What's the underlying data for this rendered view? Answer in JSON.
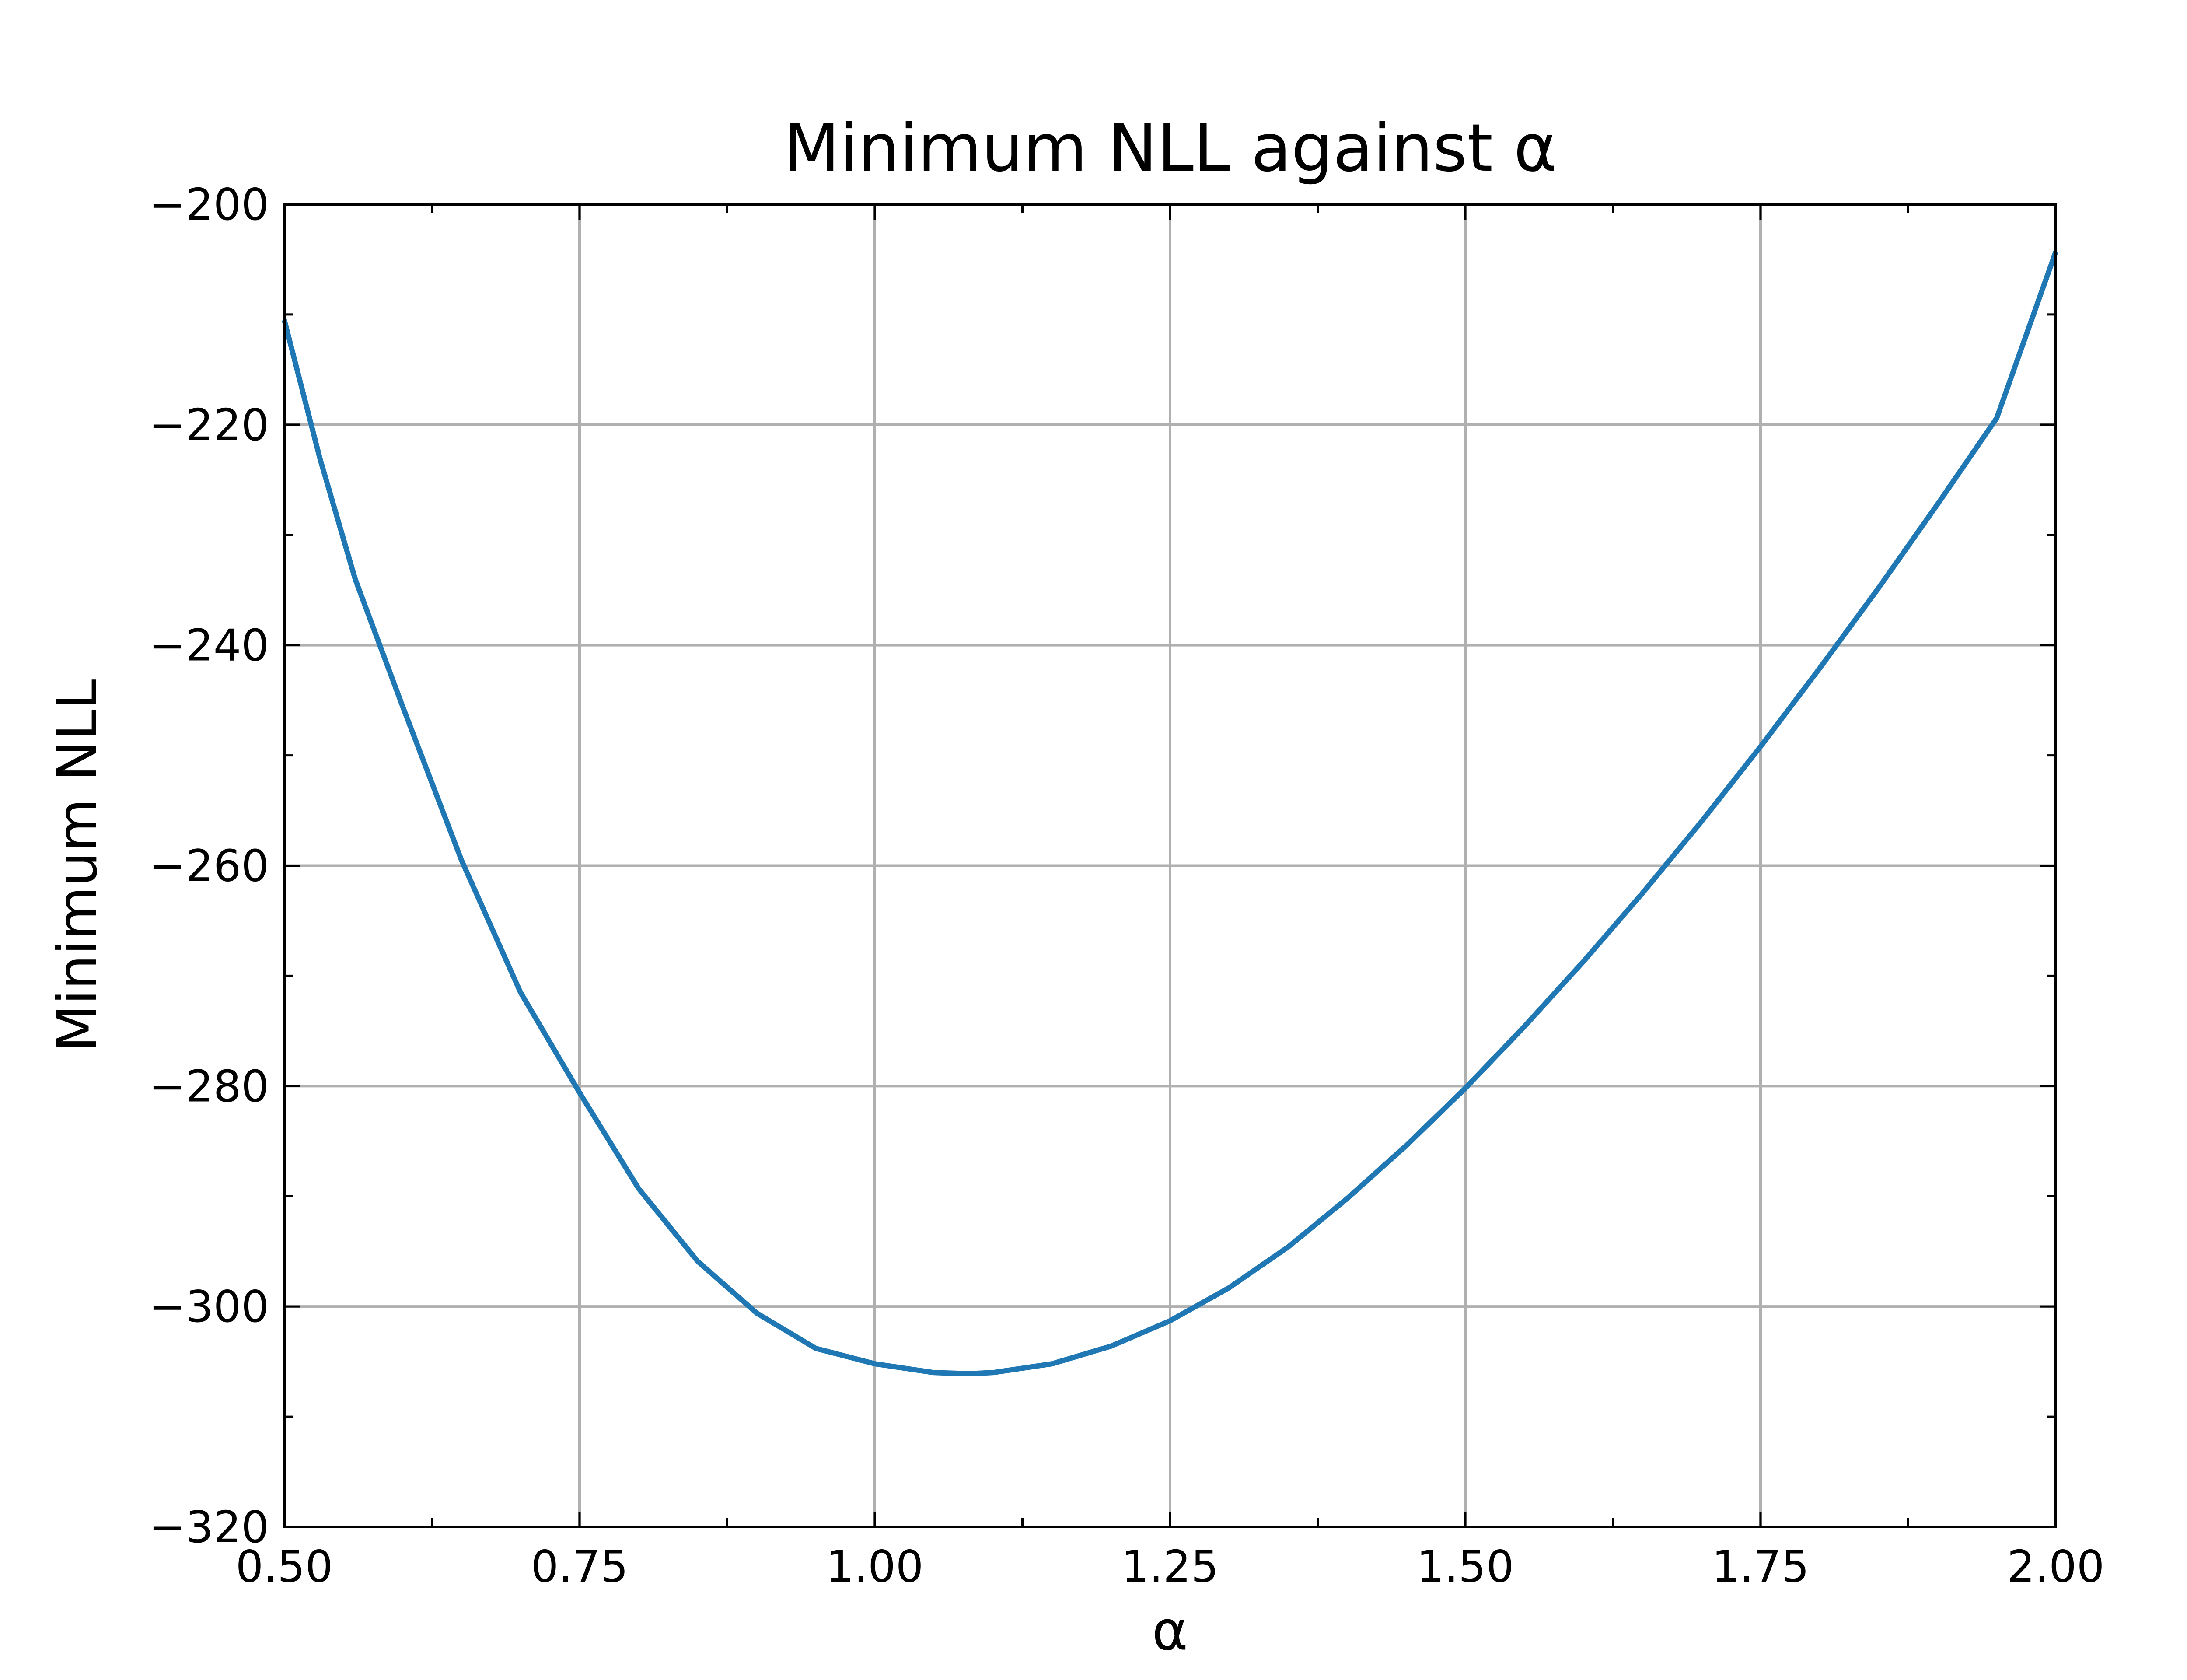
{
  "chart_data": {
    "type": "line",
    "title": "Minimum NLL against α",
    "xlabel": "α",
    "ylabel": "Minimum NLL",
    "xlim": [
      0.5,
      2.0
    ],
    "ylim": [
      -320,
      -200
    ],
    "grid": true,
    "x_ticks": [
      0.5,
      0.75,
      1.0,
      1.25,
      1.5,
      1.75,
      2.0
    ],
    "x_tick_labels": [
      "0.50",
      "0.75",
      "1.00",
      "1.25",
      "1.50",
      "1.75",
      "2.00"
    ],
    "y_ticks": [
      -320,
      -300,
      -280,
      -260,
      -240,
      -220,
      -200
    ],
    "y_tick_labels": [
      "−320",
      "−300",
      "−280",
      "−260",
      "−240",
      "−220",
      "−200"
    ],
    "x_minor_ticks": [
      0.625,
      0.875,
      1.125,
      1.375,
      1.625,
      1.875
    ],
    "y_minor_ticks": [
      -310,
      -290,
      -270,
      -250,
      -230,
      -210
    ],
    "series": [
      {
        "color": "#1f77b4",
        "x": [
          0.5,
          0.53,
          0.56,
          0.6,
          0.65,
          0.7,
          0.75,
          0.8,
          0.85,
          0.9,
          0.95,
          1.0,
          1.05,
          1.08,
          1.1,
          1.15,
          1.2,
          1.25,
          1.3,
          1.35,
          1.4,
          1.45,
          1.5,
          1.55,
          1.6,
          1.65,
          1.7,
          1.75,
          1.8,
          1.85,
          1.9,
          1.95,
          2.0
        ],
        "y": [
          -210.5,
          -223,
          -234,
          -245.5,
          -259.5,
          -271.5,
          -280.6,
          -289.3,
          -295.9,
          -300.6,
          -303.8,
          -305.2,
          -306.0,
          -306.1,
          -306.0,
          -305.2,
          -303.6,
          -301.3,
          -298.3,
          -294.6,
          -290.2,
          -285.4,
          -280.2,
          -274.6,
          -268.7,
          -262.5,
          -256.0,
          -249.2,
          -242.1,
          -234.8,
          -227.2,
          -219.4,
          -204.3
        ]
      }
    ]
  }
}
